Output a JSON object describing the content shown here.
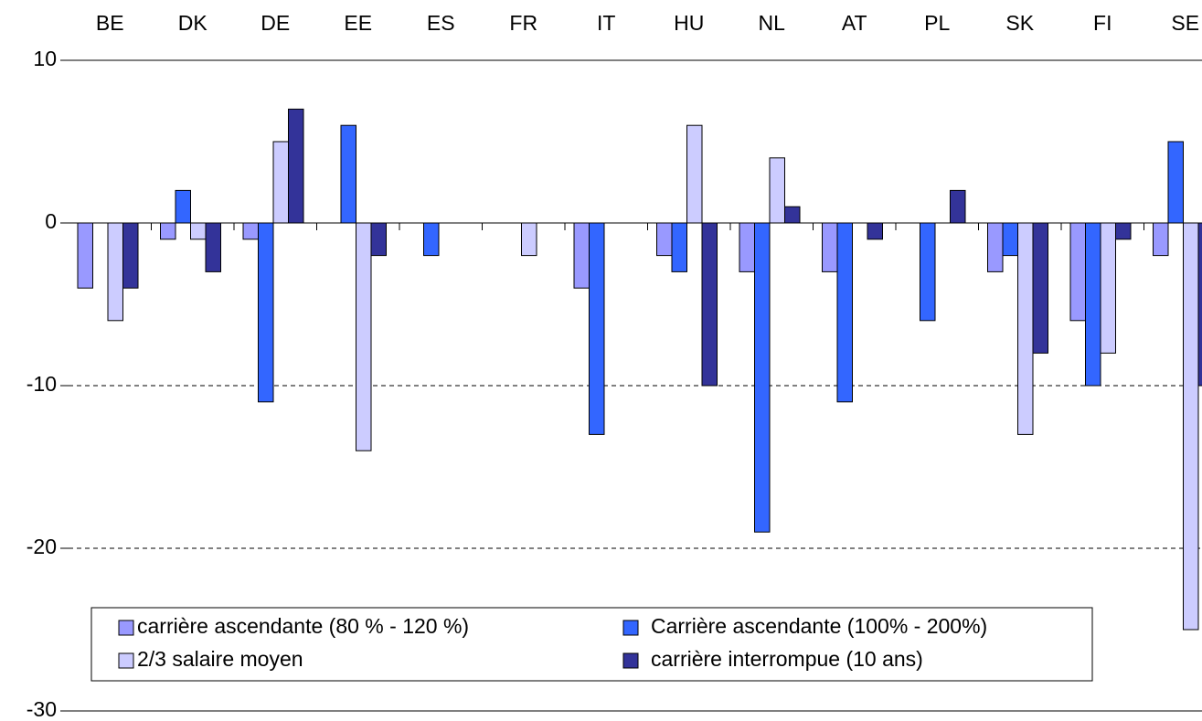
{
  "chart_data": {
    "type": "bar",
    "categories": [
      "BE",
      "DK",
      "DE",
      "EE",
      "ES",
      "FR",
      "IT",
      "HU",
      "NL",
      "AT",
      "PL",
      "SK",
      "FI",
      "SE"
    ],
    "series": [
      {
        "name": "carrière ascendante (80 % - 120 %)",
        "color": "#9999ff",
        "values": [
          -4,
          -1,
          -1,
          0,
          0,
          0,
          -4,
          -2,
          -3,
          -3,
          0,
          -3,
          -6,
          -2
        ]
      },
      {
        "name": "Carrière ascendante (100% - 200%)",
        "color": "#3366ff",
        "values": [
          0,
          2,
          -11,
          6,
          -2,
          0,
          -13,
          -3,
          -19,
          -11,
          -6,
          -2,
          -10,
          5
        ]
      },
      {
        "name": "2/3 salaire moyen",
        "color": "#ccccff",
        "values": [
          -6,
          -1,
          5,
          -14,
          0,
          -2,
          0,
          6,
          4,
          0,
          0,
          -13,
          -8,
          -25
        ]
      },
      {
        "name": "carrière interrompue (10 ans)",
        "color": "#333399",
        "values": [
          -4,
          -3,
          7,
          -2,
          0,
          0,
          0,
          -10,
          1,
          -1,
          2,
          -8,
          -1,
          -10
        ]
      }
    ],
    "ylim": [
      -30,
      10
    ],
    "yticks": [
      -30,
      -20,
      -10,
      0,
      10
    ],
    "grid": true
  }
}
